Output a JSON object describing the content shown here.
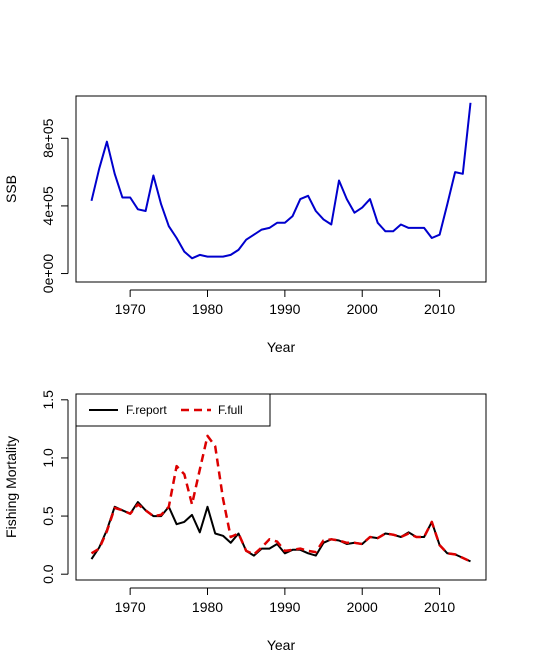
{
  "chart_data": [
    {
      "type": "line",
      "xlabel": "Year",
      "ylabel": "SSB",
      "xlim": [
        1963,
        2016
      ],
      "ylim": [
        -50000,
        1050000
      ],
      "xticks": [
        1970,
        1980,
        1990,
        2000,
        2010
      ],
      "yticks": [
        0,
        400000,
        800000
      ],
      "ytick_labels": [
        "0e+00",
        "4e+05",
        "8e+05"
      ],
      "series": [
        {
          "color": "#0000cd",
          "x": [
            1965,
            1966,
            1967,
            1968,
            1969,
            1970,
            1971,
            1972,
            1973,
            1974,
            1975,
            1976,
            1977,
            1978,
            1979,
            1980,
            1981,
            1982,
            1983,
            1984,
            1985,
            1986,
            1987,
            1988,
            1989,
            1990,
            1991,
            1992,
            1993,
            1994,
            1995,
            1996,
            1997,
            1998,
            1999,
            2000,
            2001,
            2002,
            2003,
            2004,
            2005,
            2006,
            2007,
            2008,
            2009,
            2010,
            2011,
            2012,
            2013,
            2014
          ],
          "values": [
            430000,
            620000,
            780000,
            590000,
            450000,
            450000,
            380000,
            370000,
            580000,
            410000,
            280000,
            210000,
            130000,
            90000,
            110000,
            100000,
            100000,
            100000,
            110000,
            140000,
            200000,
            230000,
            260000,
            270000,
            300000,
            300000,
            340000,
            440000,
            460000,
            370000,
            320000,
            290000,
            550000,
            440000,
            360000,
            390000,
            440000,
            300000,
            250000,
            250000,
            290000,
            270000,
            270000,
            270000,
            210000,
            230000,
            410000,
            600000,
            590000,
            1010000
          ]
        }
      ]
    },
    {
      "type": "line",
      "xlabel": "Year",
      "ylabel": "Fishing Mortality",
      "xlim": [
        1963,
        2016
      ],
      "ylim": [
        -0.05,
        1.55
      ],
      "xticks": [
        1970,
        1980,
        1990,
        2000,
        2010
      ],
      "yticks": [
        0.0,
        0.5,
        1.0,
        1.5
      ],
      "ytick_labels": [
        "0.0",
        "0.5",
        "1.0",
        "1.5"
      ],
      "legend": "top-left",
      "series": [
        {
          "name": "F.report",
          "color": "#000000",
          "style": "solid",
          "x": [
            1965,
            1966,
            1967,
            1968,
            1969,
            1970,
            1971,
            1972,
            1973,
            1974,
            1975,
            1976,
            1977,
            1978,
            1979,
            1980,
            1981,
            1982,
            1983,
            1984,
            1985,
            1986,
            1987,
            1988,
            1989,
            1990,
            1991,
            1992,
            1993,
            1994,
            1995,
            1996,
            1997,
            1998,
            1999,
            2000,
            2001,
            2002,
            2003,
            2004,
            2005,
            2006,
            2007,
            2008,
            2009,
            2010,
            2011,
            2012,
            2013,
            2014
          ],
          "values": [
            0.13,
            0.23,
            0.38,
            0.58,
            0.55,
            0.52,
            0.62,
            0.55,
            0.5,
            0.5,
            0.58,
            0.43,
            0.45,
            0.51,
            0.36,
            0.58,
            0.35,
            0.33,
            0.27,
            0.35,
            0.2,
            0.16,
            0.22,
            0.22,
            0.26,
            0.18,
            0.21,
            0.21,
            0.18,
            0.16,
            0.27,
            0.3,
            0.29,
            0.26,
            0.27,
            0.26,
            0.32,
            0.31,
            0.35,
            0.34,
            0.32,
            0.36,
            0.32,
            0.32,
            0.45,
            0.25,
            0.18,
            0.17,
            0.14,
            0.11
          ]
        },
        {
          "name": "F.full",
          "color": "#dc0000",
          "style": "dashed",
          "x": [
            1965,
            1966,
            1967,
            1968,
            1969,
            1970,
            1971,
            1972,
            1973,
            1974,
            1975,
            1976,
            1977,
            1978,
            1979,
            1980,
            1981,
            1982,
            1983,
            1984,
            1985,
            1986,
            1987,
            1988,
            1989,
            1990,
            1991,
            1992,
            1993,
            1994,
            1995,
            1996,
            1997,
            1998,
            1999,
            2000,
            2001,
            2002,
            2003,
            2004,
            2005,
            2006,
            2007,
            2008,
            2009,
            2010,
            2011,
            2012,
            2013,
            2014
          ],
          "values": [
            0.18,
            0.22,
            0.37,
            0.57,
            0.55,
            0.52,
            0.6,
            0.55,
            0.5,
            0.51,
            0.58,
            0.93,
            0.86,
            0.6,
            0.9,
            1.19,
            1.1,
            0.65,
            0.32,
            0.35,
            0.2,
            0.17,
            0.23,
            0.3,
            0.28,
            0.2,
            0.21,
            0.22,
            0.2,
            0.19,
            0.29,
            0.3,
            0.29,
            0.27,
            0.27,
            0.26,
            0.32,
            0.31,
            0.35,
            0.34,
            0.32,
            0.35,
            0.32,
            0.32,
            0.45,
            0.25,
            0.18,
            0.17,
            0.14,
            0.11
          ]
        }
      ]
    }
  ]
}
